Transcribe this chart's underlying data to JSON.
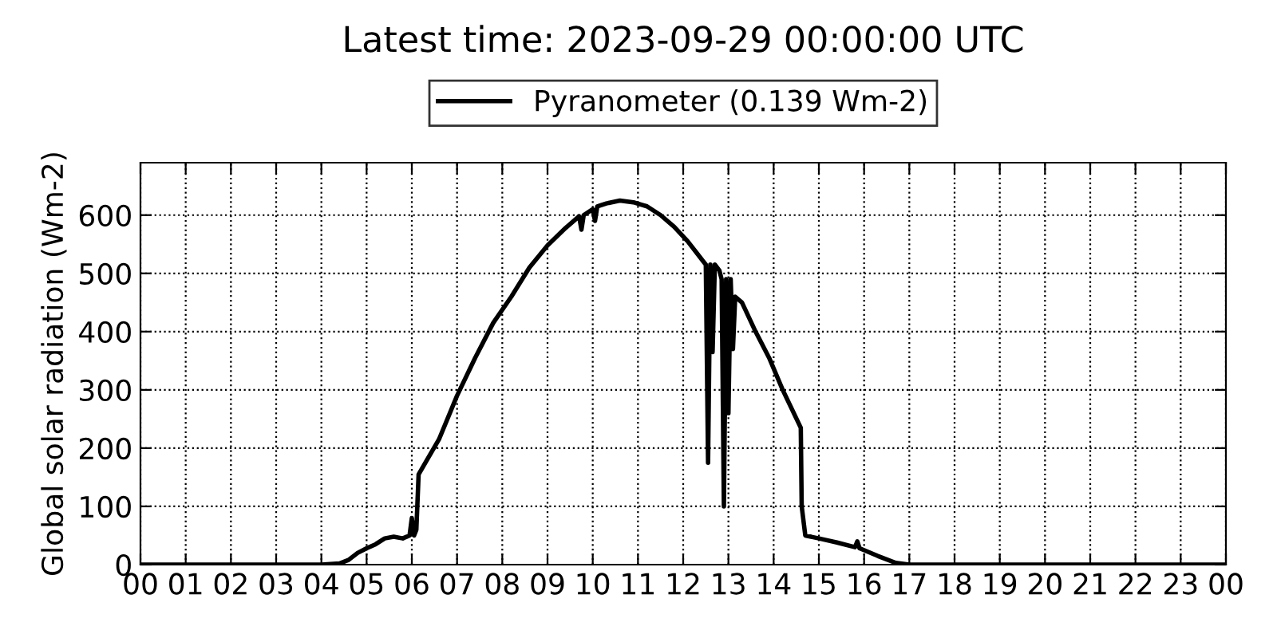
{
  "chart_data": {
    "type": "line",
    "title": "Latest time: 2023-09-29 00:00:00 UTC",
    "ylabel": "Global solar radiation (Wm-2)",
    "legend": "top",
    "grid": true,
    "line_style": "solid",
    "marker": "none",
    "xlim": [
      0,
      24
    ],
    "xticks": [
      {
        "value": 0,
        "label": "00"
      },
      {
        "value": 1,
        "label": "01"
      },
      {
        "value": 2,
        "label": "02"
      },
      {
        "value": 3,
        "label": "03"
      },
      {
        "value": 4,
        "label": "04"
      },
      {
        "value": 5,
        "label": "05"
      },
      {
        "value": 6,
        "label": "06"
      },
      {
        "value": 7,
        "label": "07"
      },
      {
        "value": 8,
        "label": "08"
      },
      {
        "value": 9,
        "label": "09"
      },
      {
        "value": 10,
        "label": "10"
      },
      {
        "value": 11,
        "label": "11"
      },
      {
        "value": 12,
        "label": "12"
      },
      {
        "value": 13,
        "label": "13"
      },
      {
        "value": 14,
        "label": "14"
      },
      {
        "value": 15,
        "label": "15"
      },
      {
        "value": 16,
        "label": "16"
      },
      {
        "value": 17,
        "label": "17"
      },
      {
        "value": 18,
        "label": "18"
      },
      {
        "value": 19,
        "label": "19"
      },
      {
        "value": 20,
        "label": "20"
      },
      {
        "value": 21,
        "label": "21"
      },
      {
        "value": 22,
        "label": "22"
      },
      {
        "value": 23,
        "label": "23"
      },
      {
        "value": 24,
        "label": "00"
      }
    ],
    "ylim": [
      0,
      690
    ],
    "yticks": [
      0,
      100,
      200,
      300,
      400,
      500,
      600
    ],
    "x": [
      0,
      4.0,
      4.4,
      4.6,
      4.8,
      5.0,
      5.2,
      5.4,
      5.6,
      5.8,
      5.95,
      6.0,
      6.05,
      6.1,
      6.15,
      6.3,
      6.6,
      7.0,
      7.4,
      7.8,
      8.2,
      8.6,
      9.0,
      9.4,
      9.7,
      9.75,
      9.8,
      10.0,
      10.05,
      10.1,
      10.3,
      10.6,
      10.9,
      11.2,
      11.5,
      11.8,
      12.1,
      12.3,
      12.45,
      12.5,
      12.55,
      12.6,
      12.65,
      12.7,
      12.8,
      12.85,
      12.9,
      12.95,
      13.0,
      13.05,
      13.1,
      13.15,
      13.3,
      13.6,
      13.9,
      14.2,
      14.6,
      14.62,
      14.7,
      15.0,
      15.4,
      15.8,
      15.85,
      15.9,
      16.3,
      16.7,
      17.0,
      24
    ],
    "series": [
      {
        "name": "Pyranometer (0.139 Wm-2)",
        "color": "#000000",
        "values": [
          0,
          0,
          2,
          8,
          20,
          28,
          35,
          45,
          48,
          45,
          50,
          80,
          50,
          60,
          155,
          175,
          215,
          290,
          355,
          415,
          460,
          510,
          548,
          578,
          598,
          575,
          600,
          610,
          590,
          615,
          620,
          625,
          622,
          615,
          600,
          580,
          555,
          535,
          520,
          515,
          175,
          515,
          365,
          515,
          505,
          490,
          100,
          490,
          260,
          490,
          370,
          460,
          450,
          400,
          355,
          300,
          235,
          100,
          50,
          45,
          38,
          30,
          40,
          28,
          15,
          3,
          0,
          0
        ]
      }
    ]
  }
}
